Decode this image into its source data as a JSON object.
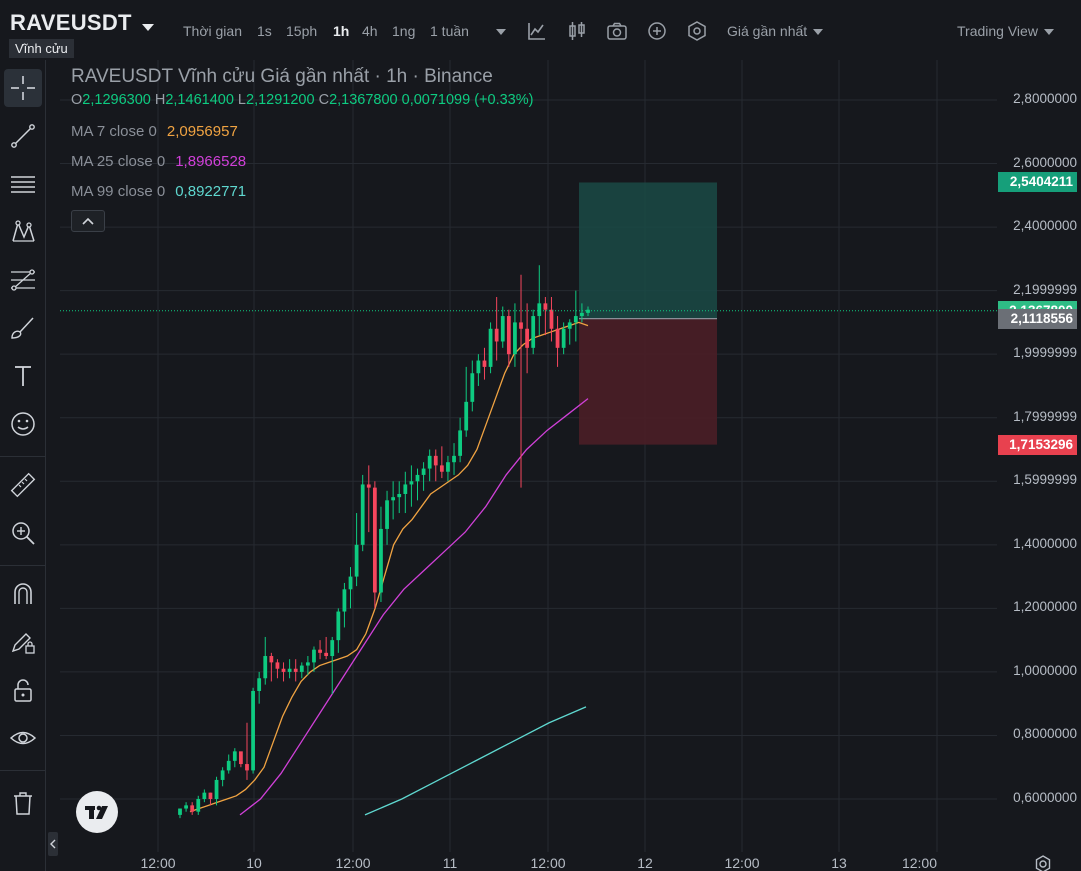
{
  "header": {
    "symbol": "RAVEUSDT",
    "badge": "Vĩnh cửu",
    "time_label": "Thời gian",
    "intervals": [
      "1s",
      "15ph",
      "1h",
      "4h",
      "1ng",
      "1 tuần"
    ],
    "active_interval": "1h",
    "price_type": "Giá gần nhất",
    "view_mode": "Trading View"
  },
  "legend": {
    "title": "RAVEUSDT Vĩnh cửu Giá gần nhất · 1h · Binance",
    "open_label": "O",
    "open": "2,1296300",
    "high_label": "H",
    "high": "2,1461400",
    "low_label": "L",
    "low": "2,1291200",
    "close_label": "C",
    "close": "2,1367800",
    "change": "0,0071099 (+0.33%)",
    "ma": [
      {
        "label": "MA 7 close 0",
        "value": "2,0956957",
        "color": "#f0a342"
      },
      {
        "label": "MA 25 close 0",
        "value": "1,8966528",
        "color": "#d040d8"
      },
      {
        "label": "MA 99 close 0",
        "value": "0,8922771",
        "color": "#5fd8d0"
      }
    ]
  },
  "price_axis": {
    "ticks": [
      "2,8000000",
      "2,6000000",
      "2,4000000",
      "2,1999999",
      "1,9999999",
      "1,7999999",
      "1,5999999",
      "1,4000000",
      "1,2000000",
      "1,0000000",
      "0,8000000",
      "0,6000000"
    ],
    "tags": [
      {
        "value": "2,5404211",
        "color": "#169f7a"
      },
      {
        "value": "2,1367800",
        "color": "#2ebd85"
      },
      {
        "value": "2,1118556",
        "color": "#6b6f76"
      },
      {
        "value": "1,7153296",
        "color": "#e8414f"
      }
    ]
  },
  "time_axis": {
    "labels": [
      "12:00",
      "10",
      "12:00",
      "11",
      "12:00",
      "12",
      "12:00",
      "13",
      "12:00"
    ]
  },
  "colors": {
    "up": "#0ecb81",
    "down": "#f6465d",
    "background": "#16181d",
    "grid": "#262a31"
  },
  "chart_data": {
    "type": "candlestick",
    "ylim": [
      0.55,
      2.85
    ],
    "candles": [
      [
        0.55,
        0.57,
        0.54,
        0.57
      ],
      [
        0.57,
        0.59,
        0.56,
        0.58
      ],
      [
        0.58,
        0.59,
        0.55,
        0.56
      ],
      [
        0.56,
        0.61,
        0.55,
        0.6
      ],
      [
        0.6,
        0.63,
        0.59,
        0.62
      ],
      [
        0.62,
        0.62,
        0.58,
        0.6
      ],
      [
        0.6,
        0.67,
        0.58,
        0.66
      ],
      [
        0.66,
        0.7,
        0.64,
        0.69
      ],
      [
        0.69,
        0.74,
        0.68,
        0.72
      ],
      [
        0.72,
        0.76,
        0.7,
        0.75
      ],
      [
        0.75,
        0.73,
        0.7,
        0.71
      ],
      [
        0.71,
        0.84,
        0.66,
        0.69
      ],
      [
        0.69,
        0.95,
        0.68,
        0.94
      ],
      [
        0.94,
        1.0,
        0.9,
        0.98
      ],
      [
        0.98,
        1.11,
        0.96,
        1.05
      ],
      [
        1.05,
        1.06,
        0.97,
        1.03
      ],
      [
        1.03,
        1.04,
        0.98,
        1.01
      ],
      [
        1.01,
        1.03,
        0.97,
        1.0
      ],
      [
        1.0,
        1.04,
        0.98,
        1.01
      ],
      [
        1.01,
        1.04,
        0.97,
        1.0
      ],
      [
        1.0,
        1.03,
        0.98,
        1.02
      ],
      [
        1.02,
        1.05,
        0.99,
        1.03
      ],
      [
        1.03,
        1.08,
        1.0,
        1.07
      ],
      [
        1.07,
        1.1,
        1.04,
        1.06
      ],
      [
        1.06,
        1.11,
        1.04,
        1.05
      ],
      [
        1.05,
        1.11,
        0.93,
        1.1
      ],
      [
        1.1,
        1.2,
        1.06,
        1.19
      ],
      [
        1.19,
        1.28,
        1.14,
        1.26
      ],
      [
        1.26,
        1.33,
        1.2,
        1.3
      ],
      [
        1.3,
        1.5,
        1.27,
        1.4
      ],
      [
        1.4,
        1.62,
        1.38,
        1.59
      ],
      [
        1.59,
        1.65,
        1.44,
        1.58
      ],
      [
        1.58,
        1.6,
        1.2,
        1.25
      ],
      [
        1.25,
        1.52,
        1.22,
        1.45
      ],
      [
        1.45,
        1.57,
        1.4,
        1.54
      ],
      [
        1.54,
        1.6,
        1.48,
        1.55
      ],
      [
        1.55,
        1.6,
        1.5,
        1.56
      ],
      [
        1.56,
        1.63,
        1.5,
        1.59
      ],
      [
        1.59,
        1.65,
        1.52,
        1.6
      ],
      [
        1.6,
        1.64,
        1.54,
        1.62
      ],
      [
        1.62,
        1.66,
        1.57,
        1.64
      ],
      [
        1.64,
        1.7,
        1.6,
        1.68
      ],
      [
        1.68,
        1.7,
        1.6,
        1.65
      ],
      [
        1.65,
        1.71,
        1.61,
        1.63
      ],
      [
        1.63,
        1.68,
        1.6,
        1.66
      ],
      [
        1.66,
        1.72,
        1.62,
        1.68
      ],
      [
        1.68,
        1.8,
        1.66,
        1.76
      ],
      [
        1.76,
        1.96,
        1.74,
        1.85
      ],
      [
        1.85,
        1.98,
        1.82,
        1.94
      ],
      [
        1.94,
        2.0,
        1.9,
        1.98
      ],
      [
        1.98,
        2.02,
        1.92,
        1.96
      ],
      [
        1.96,
        2.1,
        1.94,
        2.08
      ],
      [
        2.08,
        2.18,
        1.98,
        2.04
      ],
      [
        2.04,
        2.15,
        2.02,
        2.12
      ],
      [
        2.12,
        2.14,
        1.96,
        2.0
      ],
      [
        2.0,
        2.16,
        1.96,
        2.1
      ],
      [
        2.1,
        2.25,
        1.58,
        2.08
      ],
      [
        2.08,
        2.16,
        1.94,
        2.02
      ],
      [
        2.02,
        2.14,
        2.0,
        2.12
      ],
      [
        2.12,
        2.28,
        2.06,
        2.16
      ],
      [
        2.16,
        2.18,
        2.06,
        2.14
      ],
      [
        2.14,
        2.18,
        2.04,
        2.08
      ],
      [
        2.08,
        2.12,
        1.96,
        2.02
      ],
      [
        2.02,
        2.1,
        2.0,
        2.08
      ],
      [
        2.08,
        2.11,
        2.03,
        2.1
      ],
      [
        2.1,
        2.2,
        2.04,
        2.12
      ],
      [
        2.12,
        2.16,
        2.1,
        2.13
      ],
      [
        2.13,
        2.15,
        2.12,
        2.14
      ]
    ],
    "ma7": [
      0.56,
      0.57,
      0.58,
      0.59,
      0.6,
      0.61,
      0.63,
      0.66,
      0.7,
      0.78,
      0.86,
      0.92,
      0.97,
      1.0,
      1.02,
      1.03,
      1.04,
      1.05,
      1.07,
      1.12,
      1.2,
      1.3,
      1.4,
      1.45,
      1.48,
      1.52,
      1.56,
      1.58,
      1.6,
      1.62,
      1.65,
      1.7,
      1.78,
      1.86,
      1.94,
      2.0,
      2.03,
      2.05,
      2.06,
      2.07,
      2.08,
      2.09,
      2.1,
      2.09
    ],
    "ma25": [
      0.55,
      0.6,
      0.68,
      0.78,
      0.88,
      0.98,
      1.08,
      1.18,
      1.26,
      1.32,
      1.38,
      1.44,
      1.52,
      1.62,
      1.7,
      1.76,
      1.81,
      1.86
    ],
    "ma99": [
      0.55,
      0.6,
      0.66,
      0.72,
      0.78,
      0.84,
      0.89
    ],
    "position": {
      "entry": 2.1118556,
      "take_profit": 2.5404211,
      "stop_loss": 1.7153296
    },
    "last_price": 2.13678
  }
}
